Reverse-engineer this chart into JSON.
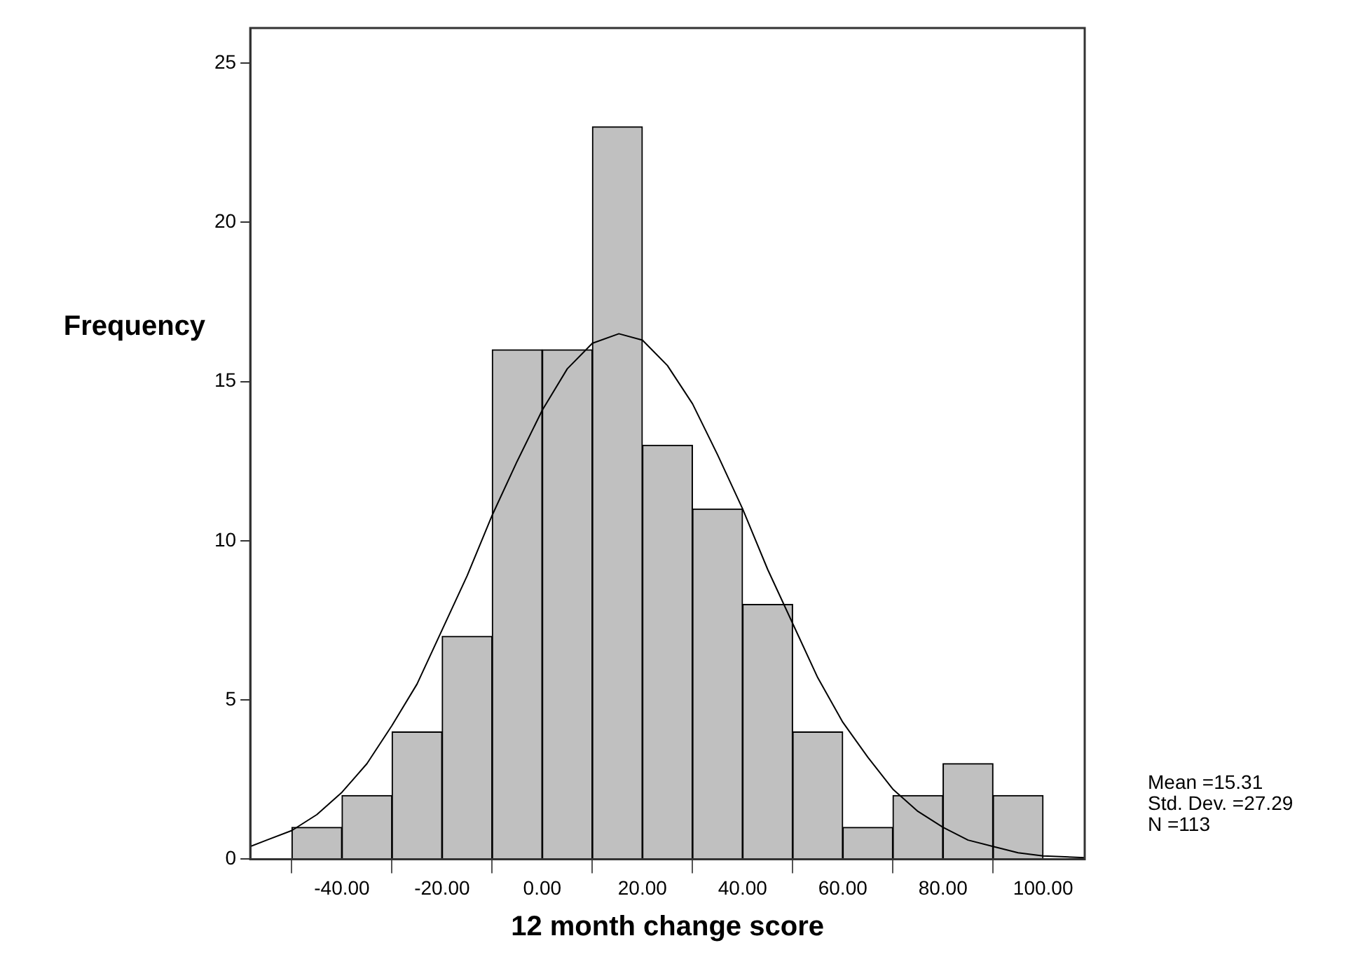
{
  "chart_data": {
    "type": "histogram",
    "xlabel": "12 month change score",
    "ylabel": "Frequency",
    "bins": [
      -50,
      -40,
      -30,
      -20,
      -10,
      0,
      10,
      20,
      30,
      40,
      50,
      60,
      70,
      80,
      90,
      100
    ],
    "series": [
      {
        "color": "#c0c0c0",
        "values": [
          1,
          2,
          4,
          7,
          16,
          16,
          23,
          13,
          11,
          8,
          4,
          1,
          2,
          3,
          2
        ]
      },
      {
        "type": "line",
        "color": "#000000",
        "x": [
          -58.3,
          -55,
          -50,
          -45,
          -40,
          -35,
          -30,
          -25,
          -20,
          -15,
          -10,
          -5,
          0,
          5,
          10,
          15.3,
          20,
          25,
          30,
          35,
          40,
          45,
          50,
          55,
          60,
          65,
          70,
          75,
          80,
          85,
          90,
          95,
          100,
          108.3
        ],
        "values": [
          0.4,
          0.6,
          0.9,
          1.4,
          2.1,
          3.0,
          4.2,
          5.5,
          7.2,
          8.9,
          10.8,
          12.5,
          14.1,
          15.4,
          16.2,
          16.5,
          16.3,
          15.5,
          14.3,
          12.7,
          11.0,
          9.1,
          7.4,
          5.7,
          4.3,
          3.2,
          2.2,
          1.5,
          1.0,
          0.6,
          0.4,
          0.2,
          0.1,
          0.05
        ]
      }
    ],
    "xlim": [
      -58.3,
      108.3
    ],
    "xticks": [
      {
        "value": -40,
        "label": "-40.00"
      },
      {
        "value": -20,
        "label": "-20.00"
      },
      {
        "value": 0,
        "label": "0.00"
      },
      {
        "value": 20,
        "label": "20.00"
      },
      {
        "value": 40,
        "label": "40.00"
      },
      {
        "value": 60,
        "label": "60.00"
      },
      {
        "value": 80,
        "label": "80.00"
      },
      {
        "value": 100,
        "label": "100.00"
      }
    ],
    "ylim": [
      0,
      26.1
    ],
    "yticks": [
      0,
      5,
      10,
      15,
      20,
      25
    ],
    "grid": false,
    "legend": false,
    "annotations": [
      "Mean =15.31",
      "Std. Dev. =27.29",
      "N =113"
    ]
  }
}
